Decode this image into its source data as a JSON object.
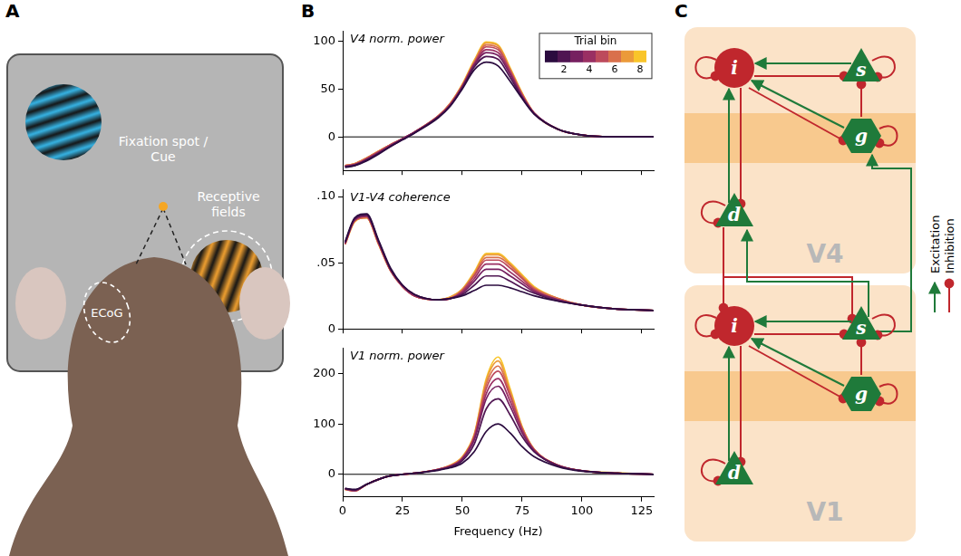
{
  "panel_letters": [
    "A",
    "B",
    "C"
  ],
  "panel_a": {
    "fixation_label": "Fixation spot / Cue",
    "receptive_field_label": "Receptive fields",
    "ecog_label": "ECoG"
  },
  "chart_data": [
    {
      "type": "line",
      "title": "V4 norm. power",
      "x": [
        1,
        5,
        10,
        15,
        20,
        25,
        30,
        40,
        45,
        50,
        55,
        60,
        65,
        70,
        75,
        80,
        90,
        100,
        115,
        130
      ],
      "xlim": [
        0,
        130
      ],
      "xticks": [
        0,
        25,
        50,
        75,
        100,
        125
      ],
      "ylim": [
        -35,
        110
      ],
      "yticks": [
        0,
        50,
        100
      ],
      "tick_labels": "y",
      "colorbar": {
        "title": "Trial bin",
        "lim": [
          0.5,
          8.5
        ],
        "ticks": [
          2,
          4,
          6,
          8
        ]
      },
      "series": [
        {
          "color": "#2b0b3f",
          "values": [
            -32,
            -30,
            -25,
            -18,
            -10,
            -3,
            4,
            20,
            32,
            50,
            70,
            78,
            74,
            58,
            40,
            24,
            8,
            2,
            0,
            0
          ]
        },
        {
          "color": "#4f1552",
          "values": [
            -31,
            -30,
            -24,
            -17,
            -10,
            -3,
            4,
            21,
            33,
            51,
            73,
            84,
            81,
            62,
            41,
            24,
            8,
            2,
            0,
            0
          ]
        },
        {
          "color": "#762060",
          "values": [
            -31,
            -29,
            -24,
            -17,
            -9,
            -2,
            5,
            21,
            33,
            52,
            75,
            88,
            85,
            65,
            42,
            25,
            8,
            2,
            0,
            0
          ]
        },
        {
          "color": "#9a2f63",
          "values": [
            -31,
            -29,
            -23,
            -16,
            -9,
            -2,
            5,
            21,
            34,
            53,
            76,
            91,
            88,
            67,
            43,
            25,
            8,
            2,
            0,
            0
          ]
        },
        {
          "color": "#bd4a5c",
          "values": [
            -30,
            -29,
            -23,
            -16,
            -8,
            -2,
            5,
            22,
            34,
            53,
            77,
            94,
            91,
            69,
            44,
            25,
            8,
            2,
            0,
            0
          ]
        },
        {
          "color": "#d9704c",
          "values": [
            -30,
            -28,
            -22,
            -15,
            -8,
            -2,
            5,
            22,
            35,
            54,
            78,
            96,
            93,
            70,
            45,
            25,
            8,
            2,
            0,
            0
          ]
        },
        {
          "color": "#eb9a3a",
          "values": [
            -30,
            -28,
            -22,
            -15,
            -8,
            -2,
            5,
            22,
            35,
            54,
            79,
            98,
            95,
            71,
            45,
            25,
            8,
            2,
            0,
            0
          ]
        },
        {
          "color": "#f9c52a",
          "values": [
            -30,
            -28,
            -22,
            -15,
            -8,
            -2,
            5,
            22,
            35,
            55,
            80,
            99,
            96,
            72,
            46,
            25,
            8,
            2,
            0,
            0
          ]
        }
      ]
    },
    {
      "type": "line",
      "title": "V1-V4 coherence",
      "x": [
        1,
        5,
        10,
        15,
        20,
        25,
        30,
        40,
        45,
        50,
        55,
        60,
        65,
        70,
        75,
        80,
        90,
        100,
        115,
        130
      ],
      "xlim": [
        0,
        130
      ],
      "xticks": [
        0,
        25,
        50,
        75,
        100,
        125
      ],
      "ylim": [
        0,
        0.105
      ],
      "yticks": [
        0,
        {
          "value": 0.05,
          "label": ".05"
        },
        {
          "value": 0.1,
          "label": ".10"
        }
      ],
      "tick_labels": "y",
      "series": [
        {
          "color": "#2b0b3f",
          "values": [
            0.066,
            0.084,
            0.087,
            0.067,
            0.046,
            0.033,
            0.026,
            0.022,
            0.023,
            0.025,
            0.029,
            0.033,
            0.033,
            0.031,
            0.028,
            0.025,
            0.021,
            0.018,
            0.015,
            0.014
          ]
        },
        {
          "color": "#4f1552",
          "values": [
            0.065,
            0.083,
            0.086,
            0.066,
            0.045,
            0.033,
            0.026,
            0.022,
            0.023,
            0.026,
            0.033,
            0.04,
            0.04,
            0.036,
            0.031,
            0.027,
            0.021,
            0.018,
            0.015,
            0.014
          ]
        },
        {
          "color": "#762060",
          "values": [
            0.065,
            0.083,
            0.086,
            0.066,
            0.045,
            0.033,
            0.026,
            0.022,
            0.023,
            0.027,
            0.036,
            0.045,
            0.045,
            0.04,
            0.034,
            0.028,
            0.022,
            0.018,
            0.015,
            0.014
          ]
        },
        {
          "color": "#9a2f63",
          "values": [
            0.065,
            0.082,
            0.085,
            0.065,
            0.045,
            0.032,
            0.025,
            0.022,
            0.023,
            0.028,
            0.038,
            0.049,
            0.049,
            0.043,
            0.036,
            0.029,
            0.022,
            0.018,
            0.015,
            0.014
          ]
        },
        {
          "color": "#bd4a5c",
          "values": [
            0.064,
            0.082,
            0.085,
            0.065,
            0.044,
            0.032,
            0.025,
            0.022,
            0.023,
            0.029,
            0.04,
            0.052,
            0.052,
            0.046,
            0.038,
            0.03,
            0.022,
            0.018,
            0.015,
            0.014
          ]
        },
        {
          "color": "#d9704c",
          "values": [
            0.064,
            0.082,
            0.084,
            0.064,
            0.044,
            0.032,
            0.025,
            0.022,
            0.023,
            0.029,
            0.041,
            0.054,
            0.054,
            0.048,
            0.039,
            0.031,
            0.023,
            0.018,
            0.015,
            0.014
          ]
        },
        {
          "color": "#eb9a3a",
          "values": [
            0.064,
            0.081,
            0.084,
            0.064,
            0.044,
            0.032,
            0.025,
            0.022,
            0.024,
            0.03,
            0.042,
            0.056,
            0.056,
            0.049,
            0.04,
            0.031,
            0.023,
            0.018,
            0.015,
            0.014
          ]
        },
        {
          "color": "#f9c52a",
          "values": [
            0.064,
            0.081,
            0.084,
            0.064,
            0.044,
            0.032,
            0.025,
            0.022,
            0.024,
            0.03,
            0.043,
            0.057,
            0.057,
            0.05,
            0.041,
            0.032,
            0.023,
            0.018,
            0.015,
            0.014
          ]
        }
      ]
    },
    {
      "type": "line",
      "title": "V1 norm. power",
      "x_label": "Frequency (Hz)",
      "x": [
        1,
        5,
        10,
        15,
        20,
        25,
        30,
        40,
        45,
        50,
        55,
        60,
        65,
        70,
        75,
        80,
        90,
        100,
        115,
        130
      ],
      "xlim": [
        0,
        130
      ],
      "xticks": [
        0,
        25,
        50,
        75,
        100,
        125
      ],
      "ylim": [
        -45,
        250
      ],
      "yticks": [
        0,
        100,
        200
      ],
      "series": [
        {
          "color": "#2b0b3f",
          "values": [
            -28,
            -30,
            -20,
            -10,
            -3,
            0,
            2,
            8,
            13,
            22,
            45,
            85,
            100,
            82,
            55,
            35,
            15,
            6,
            2,
            0
          ]
        },
        {
          "color": "#4f1552",
          "values": [
            -28,
            -31,
            -20,
            -10,
            -3,
            0,
            2,
            9,
            15,
            27,
            60,
            130,
            150,
            118,
            75,
            45,
            17,
            7,
            2,
            0
          ]
        },
        {
          "color": "#762060",
          "values": [
            -29,
            -32,
            -20,
            -10,
            -3,
            0,
            2,
            9,
            15,
            30,
            68,
            150,
            175,
            135,
            82,
            47,
            17,
            7,
            2,
            0
          ]
        },
        {
          "color": "#9a2f63",
          "values": [
            -29,
            -32,
            -20,
            -10,
            -3,
            0,
            2,
            10,
            16,
            31,
            72,
            160,
            190,
            145,
            87,
            48,
            18,
            7,
            2,
            0
          ]
        },
        {
          "color": "#bd4a5c",
          "values": [
            -29,
            -33,
            -20,
            -10,
            -3,
            0,
            2,
            10,
            17,
            32,
            75,
            170,
            205,
            155,
            90,
            49,
            18,
            7,
            2,
            0
          ]
        },
        {
          "color": "#d9704c",
          "values": [
            -30,
            -33,
            -20,
            -10,
            -3,
            0,
            2,
            10,
            17,
            33,
            77,
            178,
            215,
            160,
            92,
            50,
            18,
            7,
            2,
            0
          ]
        },
        {
          "color": "#eb9a3a",
          "values": [
            -30,
            -33,
            -20,
            -10,
            -3,
            0,
            2,
            10,
            18,
            34,
            78,
            185,
            225,
            165,
            94,
            50,
            18,
            7,
            2,
            0
          ]
        },
        {
          "color": "#f9c52a",
          "values": [
            -30,
            -33,
            -20,
            -10,
            -3,
            0,
            2,
            10,
            18,
            35,
            80,
            190,
            233,
            170,
            95,
            50,
            18,
            7,
            3,
            0
          ]
        }
      ]
    }
  ],
  "panel_c": {
    "areas": [
      {
        "label": "V4",
        "nodes": [
          "i",
          "s",
          "g",
          "d"
        ]
      },
      {
        "label": "V1",
        "nodes": [
          "i",
          "s",
          "g",
          "d"
        ]
      }
    ],
    "legend": [
      {
        "label": "Excitation",
        "color": "#1f7a3a"
      },
      {
        "label": "Inhibition",
        "color": "#c0272d"
      }
    ]
  }
}
